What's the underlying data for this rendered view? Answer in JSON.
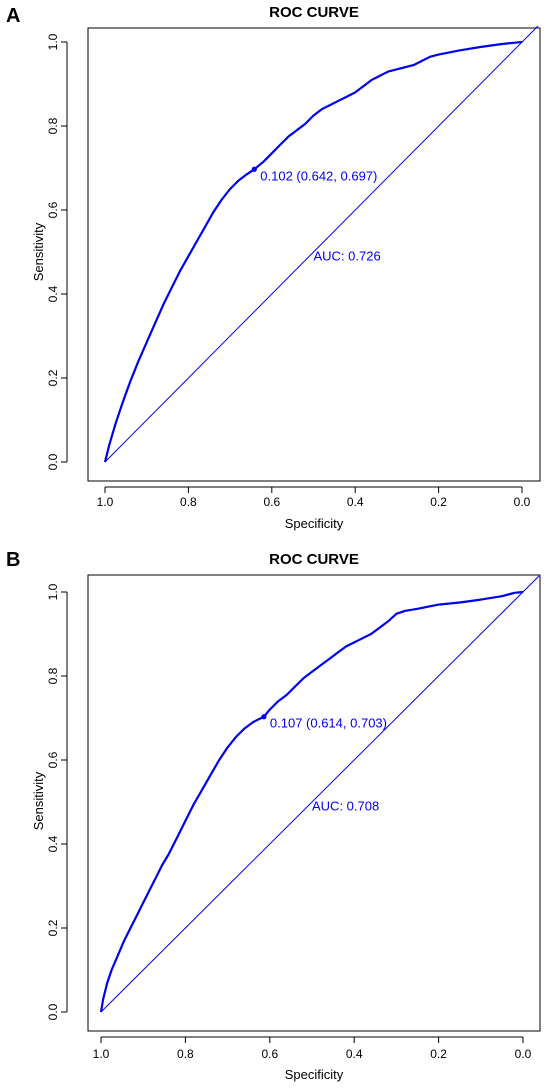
{
  "chart_data": [
    {
      "panel_label": "A",
      "type": "line",
      "title": "ROC CURVE",
      "xlabel": "Specificity",
      "ylabel": "Sensitivity",
      "x_reversed": true,
      "xlim": [
        1.0,
        0.0
      ],
      "ylim": [
        0.0,
        1.0
      ],
      "x_ticks": [
        "1.0",
        "0.8",
        "0.6",
        "0.4",
        "0.2",
        "0.0"
      ],
      "y_ticks": [
        "0.0",
        "0.2",
        "0.4",
        "0.6",
        "0.8",
        "1.0"
      ],
      "grid": false,
      "legend": "none",
      "curve_color": "#0000ee",
      "series": [
        {
          "specificity": [
            1.0,
            0.99,
            0.975,
            0.96,
            0.94,
            0.92,
            0.9,
            0.88,
            0.86,
            0.84,
            0.82,
            0.8,
            0.78,
            0.76,
            0.74,
            0.72,
            0.7,
            0.68,
            0.66,
            0.642,
            0.62,
            0.6,
            0.58,
            0.56,
            0.54,
            0.52,
            0.5,
            0.48,
            0.46,
            0.44,
            0.42,
            0.4,
            0.38,
            0.36,
            0.34,
            0.32,
            0.3,
            0.28,
            0.26,
            0.24,
            0.22,
            0.2,
            0.15,
            0.1,
            0.05,
            0.02,
            0.0
          ],
          "sensitivity": [
            0.0,
            0.04,
            0.09,
            0.135,
            0.19,
            0.24,
            0.285,
            0.33,
            0.375,
            0.415,
            0.455,
            0.49,
            0.525,
            0.56,
            0.595,
            0.625,
            0.65,
            0.67,
            0.685,
            0.697,
            0.715,
            0.735,
            0.755,
            0.775,
            0.79,
            0.805,
            0.825,
            0.84,
            0.85,
            0.86,
            0.87,
            0.88,
            0.895,
            0.91,
            0.92,
            0.93,
            0.935,
            0.94,
            0.945,
            0.955,
            0.965,
            0.97,
            0.98,
            0.988,
            0.995,
            0.998,
            1.0
          ]
        }
      ],
      "cutoff_point": {
        "x": 0.642,
        "y": 0.697,
        "label": "0.102 (0.642, 0.697)"
      },
      "auc_label": "AUC: 0.726",
      "auc_label_pos": {
        "x": 0.5,
        "y": 0.48
      }
    },
    {
      "panel_label": "B",
      "type": "line",
      "title": "ROC CURVE",
      "xlabel": "Specificity",
      "ylabel": "Sensitivity",
      "x_reversed": true,
      "xlim": [
        1.0,
        0.0
      ],
      "ylim": [
        0.0,
        1.0
      ],
      "x_ticks": [
        "1.0",
        "0.8",
        "0.6",
        "0.4",
        "0.2",
        "0.0"
      ],
      "y_ticks": [
        "0.0",
        "0.2",
        "0.4",
        "0.6",
        "0.8",
        "1.0"
      ],
      "grid": false,
      "legend": "none",
      "curve_color": "#0000ee",
      "series": [
        {
          "specificity": [
            1.0,
            0.995,
            0.985,
            0.975,
            0.96,
            0.945,
            0.93,
            0.915,
            0.9,
            0.885,
            0.87,
            0.855,
            0.84,
            0.82,
            0.8,
            0.78,
            0.76,
            0.74,
            0.72,
            0.7,
            0.68,
            0.66,
            0.64,
            0.614,
            0.6,
            0.58,
            0.56,
            0.54,
            0.52,
            0.5,
            0.48,
            0.46,
            0.44,
            0.42,
            0.4,
            0.38,
            0.36,
            0.34,
            0.32,
            0.3,
            0.28,
            0.25,
            0.2,
            0.15,
            0.1,
            0.05,
            0.02,
            0.0
          ],
          "sensitivity": [
            0.0,
            0.03,
            0.07,
            0.1,
            0.135,
            0.17,
            0.2,
            0.23,
            0.26,
            0.29,
            0.32,
            0.35,
            0.375,
            0.415,
            0.455,
            0.495,
            0.53,
            0.565,
            0.6,
            0.63,
            0.655,
            0.675,
            0.69,
            0.703,
            0.72,
            0.74,
            0.755,
            0.775,
            0.795,
            0.81,
            0.825,
            0.84,
            0.855,
            0.87,
            0.88,
            0.89,
            0.9,
            0.915,
            0.93,
            0.948,
            0.955,
            0.96,
            0.97,
            0.975,
            0.982,
            0.99,
            0.998,
            1.0
          ]
        }
      ],
      "cutoff_point": {
        "x": 0.614,
        "y": 0.703,
        "label": "0.107 (0.614, 0.703)"
      },
      "auc_label": "AUC: 0.708",
      "auc_label_pos": {
        "x": 0.5,
        "y": 0.48
      }
    }
  ]
}
